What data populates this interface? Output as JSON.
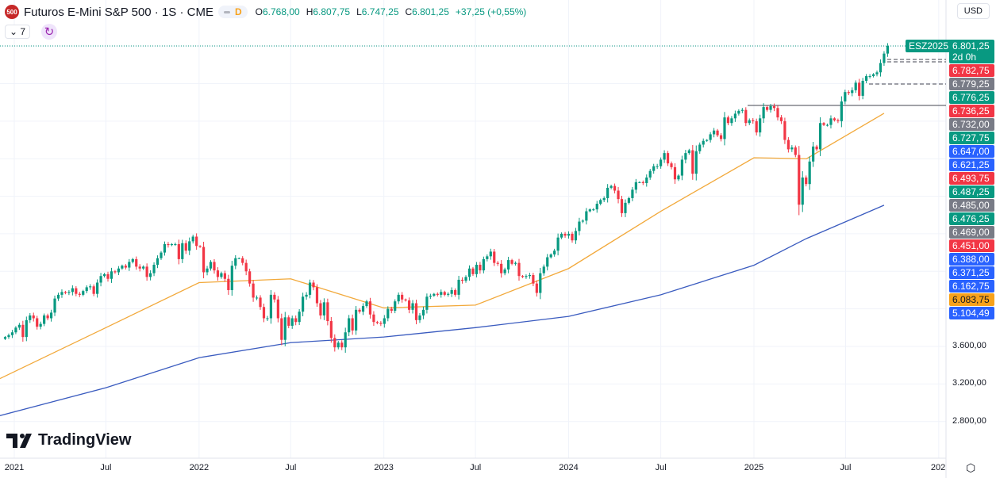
{
  "header": {
    "symbol_badge": "500",
    "title": "Futuros E-Mini S&P 500 · 1S · CME",
    "badge_letter": "D",
    "open_label": "O",
    "open": "6.768,00",
    "high_label": "H",
    "high": "6.807,75",
    "low_label": "L",
    "low": "6.747,25",
    "close_label": "C",
    "close": "6.801,25",
    "change": "+37,25 (+0,55%)",
    "indicators_count": "7",
    "currency": "USD"
  },
  "logo": "TradingView",
  "colors": {
    "up": "#089981",
    "down": "#f23645",
    "ma_fast": "#f2a93b",
    "ma_slow": "#3a5bbf",
    "grid": "#f0f3fa"
  },
  "price_labels": [
    {
      "text": "6.782,75",
      "color": "#f23645"
    },
    {
      "text": "6.779,25",
      "color": "#787b86"
    },
    {
      "text": "6.776,25",
      "color": "#089981"
    },
    {
      "text": "6.736,25",
      "color": "#f23645"
    },
    {
      "text": "6.732,00",
      "color": "#787b86"
    },
    {
      "text": "6.727,75",
      "color": "#089981"
    },
    {
      "text": "6.647,00",
      "color": "#2962ff"
    },
    {
      "text": "6.621,25",
      "color": "#2962ff"
    },
    {
      "text": "6.493,75",
      "color": "#f23645"
    },
    {
      "text": "6.487,25",
      "color": "#089981"
    },
    {
      "text": "6.485,00",
      "color": "#787b86"
    },
    {
      "text": "6.476,25",
      "color": "#089981"
    },
    {
      "text": "6.469,00",
      "color": "#787b86"
    },
    {
      "text": "6.451,00",
      "color": "#f23645"
    },
    {
      "text": "6.388,00",
      "color": "#2962ff"
    },
    {
      "text": "6.371,25",
      "color": "#2962ff"
    },
    {
      "text": "6.162,75",
      "color": "#2962ff"
    },
    {
      "text": "6.083,75",
      "color": "#f7a21b"
    },
    {
      "text": "5.104,49",
      "color": "#2962ff"
    }
  ],
  "last_price": {
    "ticker": "ESZ2025",
    "price": "6.801,25",
    "countdown": "2d 0h"
  },
  "chart_data": {
    "type": "candlestick",
    "interval": "1W",
    "x_start": "2020-12-14",
    "ylim": [
      2600,
      6900
    ],
    "y_ticks": [
      {
        "value": 3600,
        "label": "3.600,00"
      },
      {
        "value": 3200,
        "label": "3.200,00"
      },
      {
        "value": 2800,
        "label": "2.800,00"
      }
    ],
    "x_ticks": [
      {
        "date": "2021-01-01",
        "label": "2021"
      },
      {
        "date": "2021-07-01",
        "label": "Jul"
      },
      {
        "date": "2022-01-01",
        "label": "2022"
      },
      {
        "date": "2022-07-01",
        "label": "Jul"
      },
      {
        "date": "2023-01-01",
        "label": "2023"
      },
      {
        "date": "2023-07-01",
        "label": "Jul"
      },
      {
        "date": "2024-01-01",
        "label": "2024"
      },
      {
        "date": "2024-07-01",
        "label": "Jul"
      },
      {
        "date": "2025-01-01",
        "label": "2025"
      },
      {
        "date": "2025-07-01",
        "label": "Jul"
      },
      {
        "date": "2026-01-01",
        "label": "202"
      }
    ],
    "closes": [
      3700,
      3720,
      3750,
      3800,
      3830,
      3700,
      3880,
      3930,
      3900,
      3810,
      3840,
      3930,
      3900,
      3960,
      4110,
      4150,
      4180,
      4170,
      4180,
      4220,
      4160,
      4150,
      4190,
      4230,
      4240,
      4160,
      4280,
      4350,
      4370,
      4320,
      4400,
      4390,
      4430,
      4460,
      4440,
      4500,
      4530,
      4450,
      4430,
      4450,
      4340,
      4380,
      4470,
      4540,
      4600,
      4690,
      4680,
      4690,
      4690,
      4530,
      4700,
      4620,
      4720,
      4770,
      4670,
      4660,
      4390,
      4430,
      4500,
      4410,
      4340,
      4380,
      4320,
      4200,
      4460,
      4540,
      4540,
      4490,
      4400,
      4270,
      4120,
      4120,
      4020,
      3900,
      3900,
      4150,
      4100,
      3900,
      3670,
      3910,
      3820,
      3900,
      3860,
      3970,
      4130,
      4150,
      4280,
      4230,
      4060,
      3930,
      4070,
      3870,
      3690,
      3590,
      3640,
      3590,
      3750,
      3900,
      3770,
      3990,
      3970,
      4030,
      4080,
      3940,
      3860,
      3850,
      3840,
      3900,
      4000,
      3980,
      4080,
      4150,
      4100,
      4090,
      3990,
      4060,
      3880,
      3930,
      3990,
      4130,
      4140,
      4160,
      4150,
      4180,
      4150,
      4160,
      4200,
      4150,
      4310,
      4300,
      4340,
      4430,
      4370,
      4470,
      4410,
      4530,
      4560,
      4610,
      4490,
      4480,
      4380,
      4420,
      4520,
      4480,
      4490,
      4350,
      4340,
      4350,
      4360,
      4270,
      4170,
      4380,
      4450,
      4550,
      4580,
      4620,
      4760,
      4800,
      4780,
      4800,
      4730,
      4830,
      4930,
      4940,
      5040,
      5060,
      5060,
      5120,
      5160,
      5180,
      5290,
      5310,
      5260,
      5170,
      5020,
      5130,
      5180,
      5270,
      5350,
      5350,
      5340,
      5400,
      5470,
      5520,
      5520,
      5590,
      5660,
      5550,
      5510,
      5380,
      5420,
      5590,
      5660,
      5690,
      5440,
      5680,
      5750,
      5790,
      5800,
      5860,
      5900,
      5850,
      5810,
      6040,
      5980,
      6030,
      6080,
      6110,
      6120,
      5980,
      6010,
      6000,
      5880,
      6030,
      6150,
      6120,
      6160,
      6140,
      6040,
      6000,
      5800,
      5700,
      5720,
      5640,
      5110,
      5400,
      5330,
      5570,
      5730,
      5700,
      5980,
      5960,
      5960,
      6030,
      6010,
      6000,
      6210,
      6310,
      6300,
      6330,
      6410,
      6270,
      6430,
      6480,
      6480,
      6500,
      6520,
      6620,
      6720,
      6801.25
    ],
    "series": [
      {
        "type": "line",
        "color": "#f2a93b",
        "points": [
          [
            "2020-12-01",
            3250
          ],
          [
            "2021-07-01",
            3800
          ],
          [
            "2022-01-01",
            4280
          ],
          [
            "2022-07-01",
            4320
          ],
          [
            "2023-01-01",
            4010
          ],
          [
            "2023-07-01",
            4040
          ],
          [
            "2024-01-01",
            4430
          ],
          [
            "2024-07-01",
            5040
          ],
          [
            "2025-01-01",
            5610
          ],
          [
            "2025-04-15",
            5600
          ],
          [
            "2025-09-15",
            6083.75
          ]
        ]
      },
      {
        "type": "line",
        "color": "#3a5bbf",
        "points": [
          [
            "2020-11-25",
            2850
          ],
          [
            "2021-07-01",
            3160
          ],
          [
            "2022-01-01",
            3480
          ],
          [
            "2022-07-01",
            3640
          ],
          [
            "2023-01-01",
            3700
          ],
          [
            "2023-07-01",
            3800
          ],
          [
            "2024-01-01",
            3920
          ],
          [
            "2024-07-01",
            4150
          ],
          [
            "2025-01-01",
            4465
          ],
          [
            "2025-04-15",
            4750
          ],
          [
            "2025-09-15",
            5104.49
          ]
        ]
      }
    ]
  }
}
